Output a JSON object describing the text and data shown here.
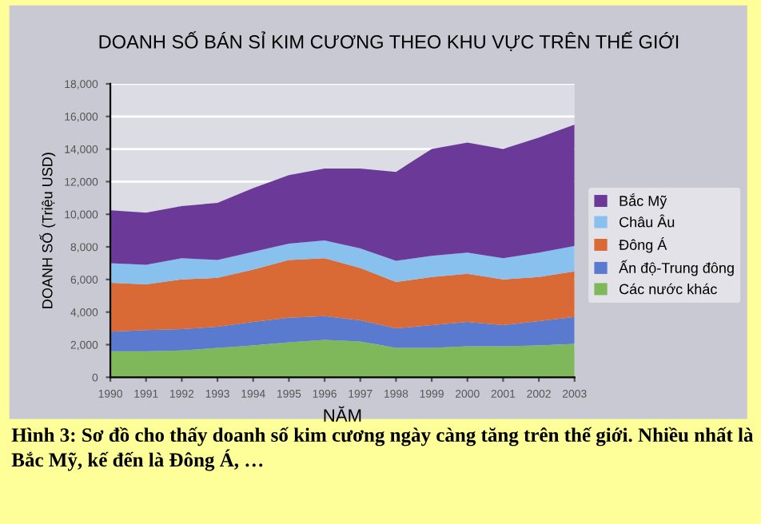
{
  "chart_data": {
    "type": "area",
    "stacked": true,
    "title": "DOANH SỐ BÁN SỈ KIM CƯƠNG THEO KHU VỰC TRÊN THẾ GIỚI",
    "xlabel": "NĂM",
    "ylabel": "DOANH SỐ (Triệu USD)",
    "x": [
      1990,
      1991,
      1992,
      1993,
      1994,
      1995,
      1996,
      1997,
      1998,
      1999,
      2000,
      2001,
      2002,
      2003
    ],
    "series": [
      {
        "name": "Các nước khác",
        "color": "#7fb85a",
        "values": [
          1600,
          1600,
          1650,
          1800,
          1950,
          2150,
          2300,
          2200,
          1800,
          1800,
          1900,
          1900,
          1950,
          2050
        ]
      },
      {
        "name": "Ấn độ-Trung đông",
        "color": "#5a7ad0",
        "values": [
          1200,
          1300,
          1300,
          1300,
          1450,
          1500,
          1450,
          1300,
          1200,
          1400,
          1500,
          1300,
          1500,
          1650
        ]
      },
      {
        "name": "Đông Á",
        "color": "#d96a35",
        "values": [
          3000,
          2800,
          3050,
          3000,
          3200,
          3550,
          3550,
          3200,
          2850,
          2950,
          2950,
          2800,
          2700,
          2800
        ]
      },
      {
        "name": "Châu Âu",
        "color": "#88c0ee",
        "values": [
          1200,
          1200,
          1300,
          1100,
          1100,
          1000,
          1100,
          1200,
          1300,
          1300,
          1300,
          1300,
          1500,
          1550
        ]
      },
      {
        "name": "Bắc Mỹ",
        "color": "#6b3a99",
        "values": [
          3250,
          3200,
          3200,
          3500,
          3900,
          4200,
          4400,
          4900,
          5450,
          6550,
          6750,
          6700,
          7050,
          7450
        ]
      }
    ],
    "xlim": [
      1990,
      2003
    ],
    "xticks": [
      1990,
      1991,
      1992,
      1993,
      1994,
      1995,
      1996,
      1997,
      1998,
      1999,
      2000,
      2001,
      2002,
      2003
    ],
    "ylim": [
      0,
      18000
    ],
    "yticks": [
      0,
      {
        "value": 2000,
        "label": "2,000"
      },
      {
        "value": 4000,
        "label": "4,000"
      },
      {
        "value": 6000,
        "label": "6,000"
      },
      {
        "value": 8000,
        "label": "8,000"
      },
      {
        "value": 10000,
        "label": "10,000"
      },
      {
        "value": 12000,
        "label": "12,000"
      },
      {
        "value": 14000,
        "label": "14,000"
      },
      {
        "value": 16000,
        "label": "16,000"
      },
      {
        "value": 18000,
        "label": "18,000"
      }
    ],
    "grid": "y",
    "legend": "right",
    "annotations": [
      "Hình 3: Sơ đồ cho thấy doanh số kim cương ngày càng tăng trên thế giới. Nhiều nhất là Bắc Mỹ, kế đến là Đông Á, …"
    ]
  }
}
